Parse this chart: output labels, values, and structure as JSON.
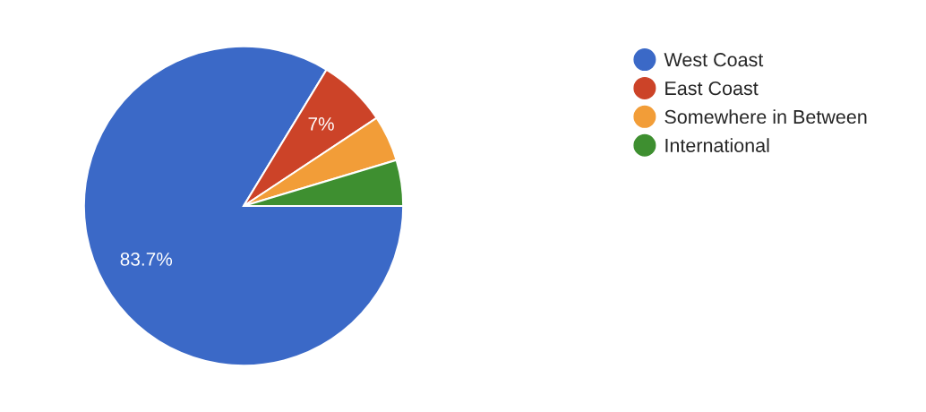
{
  "chart_data": {
    "type": "pie",
    "categories": [
      "West Coast",
      "East Coast",
      "Somewhere in Between",
      "International"
    ],
    "values": [
      83.7,
      7,
      4.65,
      4.65
    ],
    "colors": [
      "#3b69c7",
      "#cc4328",
      "#f29d38",
      "#3e8f30"
    ],
    "value_labels": [
      "83.7%",
      "7%",
      null,
      null
    ],
    "legend": "top right"
  }
}
